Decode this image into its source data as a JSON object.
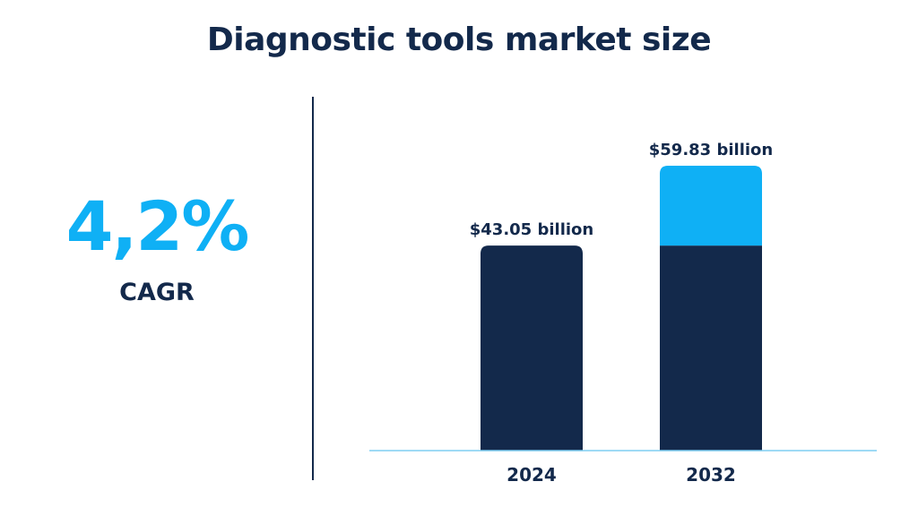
{
  "title": "Diagnostic tools market size",
  "cagr": {
    "value": "4,2%",
    "label": "CAGR"
  },
  "colors": {
    "base": "#13294b",
    "growth": "#0fb0f5",
    "axis": "#7ecdf2"
  },
  "chart_data": {
    "type": "bar",
    "title": "Diagnostic tools market size",
    "categories": [
      "2024",
      "2032"
    ],
    "series": [
      {
        "values": [
          43.05,
          43.05
        ]
      },
      {
        "values": [
          0,
          16.78
        ]
      }
    ],
    "totals": [
      43.05,
      59.83
    ],
    "data_labels": [
      "$43.05 billion",
      "$59.83 billion"
    ],
    "unit": "billion USD",
    "ylim": [
      0,
      70
    ],
    "grid": false,
    "legend": "none"
  }
}
